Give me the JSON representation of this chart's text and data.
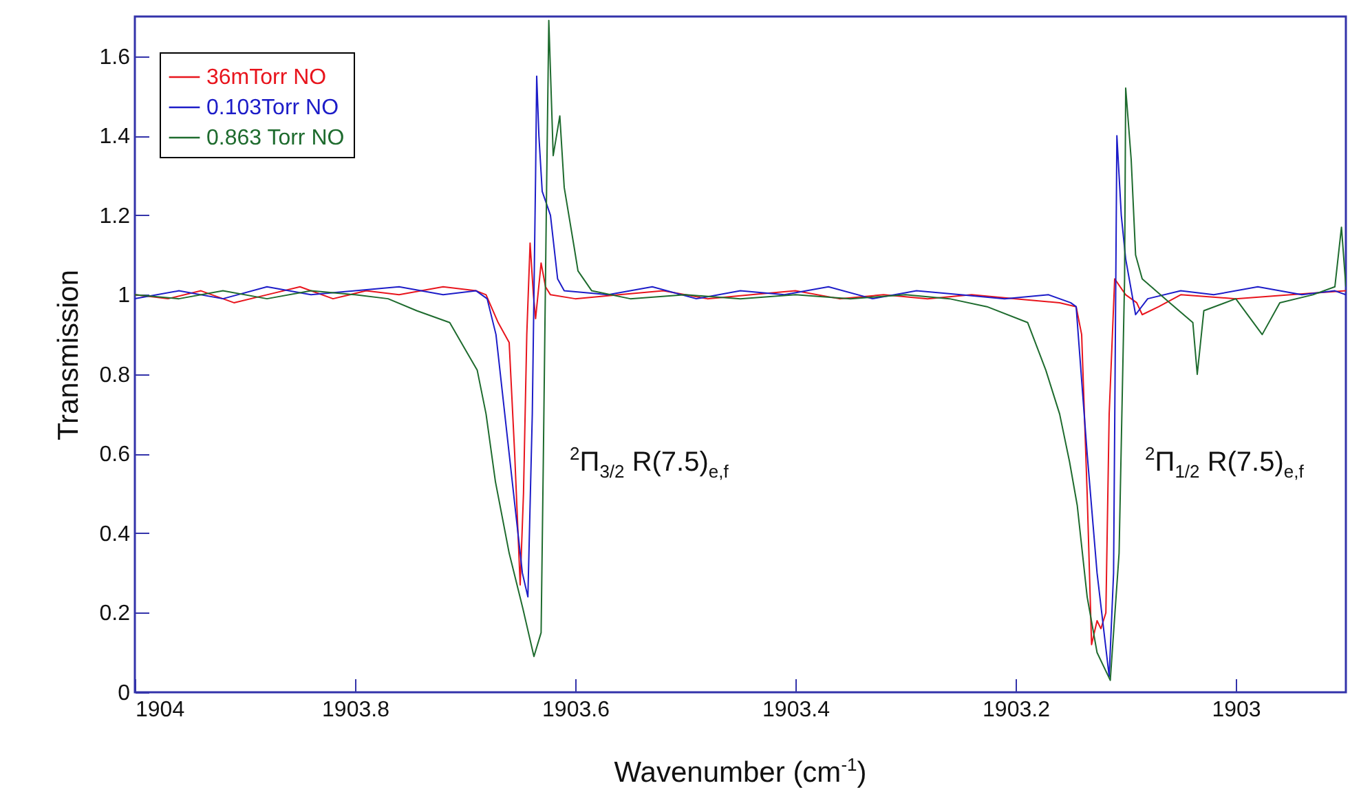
{
  "chart_data": {
    "type": "line",
    "xlabel": "Wavenumber (cm$^{-1}$)",
    "ylabel": "Transmission",
    "xlim": [
      1904,
      1902.9
    ],
    "ylim": [
      0,
      1.7
    ],
    "xticks": [
      1904,
      1903.8,
      1903.6,
      1903.4,
      1903.2,
      1903
    ],
    "yticks": [
      0,
      0.2,
      0.4,
      0.6,
      0.8,
      1,
      1.2,
      1.4,
      1.6
    ],
    "legend": "top left",
    "grid": false,
    "marker": "none",
    "line_style": "solid",
    "annotations": [
      "$^{2}$Π$_{3/2}$ R(7.5)$_{e,f}$",
      "$^{2}$Π$_{1/2}$ R(7.5)$_{e,f}$"
    ],
    "series": [
      {
        "name": "36mTorr NO",
        "color": "#e8141c",
        "x": [
          1904,
          1903.97,
          1903.94,
          1903.91,
          1903.88,
          1903.85,
          1903.82,
          1903.79,
          1903.76,
          1903.72,
          1903.69,
          1903.681,
          1903.67,
          1903.66,
          1903.655,
          1903.65,
          1903.647,
          1903.644,
          1903.641,
          1903.638,
          1903.636,
          1903.631,
          1903.627,
          1903.6225,
          1903.6,
          1903.56,
          1903.52,
          1903.48,
          1903.44,
          1903.4,
          1903.36,
          1903.32,
          1903.28,
          1903.24,
          1903.2,
          1903.16,
          1903.145,
          1903.14,
          1903.135,
          1903.131,
          1903.126,
          1903.1225,
          1903.118,
          1903.115,
          1903.11,
          1903.1,
          1903.09,
          1903.085,
          1903.07,
          1903.05,
          1903.0,
          1902.95,
          1902.9
        ],
        "values": [
          1.0,
          0.99,
          1.01,
          0.98,
          1.0,
          1.02,
          0.99,
          1.01,
          1.0,
          1.02,
          1.01,
          1.0,
          0.93,
          0.88,
          0.6,
          0.27,
          0.5,
          0.9,
          1.13,
          1.0,
          0.94,
          1.08,
          1.02,
          1.0,
          0.99,
          1.0,
          1.01,
          0.99,
          1.0,
          1.01,
          0.99,
          1.0,
          0.99,
          1.0,
          0.99,
          0.98,
          0.97,
          0.9,
          0.5,
          0.12,
          0.18,
          0.16,
          0.2,
          0.7,
          1.04,
          1.0,
          0.98,
          0.95,
          0.97,
          1.0,
          0.99,
          1.0,
          1.01
        ]
      },
      {
        "name": "0.103Torr NO",
        "color": "#1c1cc8",
        "x": [
          1904,
          1903.96,
          1903.92,
          1903.88,
          1903.84,
          1903.8,
          1903.76,
          1903.72,
          1903.69,
          1903.68,
          1903.672,
          1903.66,
          1903.648,
          1903.643,
          1903.639,
          1903.636,
          1903.635,
          1903.633,
          1903.63,
          1903.6225,
          1903.616,
          1903.61,
          1903.57,
          1903.53,
          1903.49,
          1903.45,
          1903.41,
          1903.37,
          1903.33,
          1903.29,
          1903.25,
          1903.21,
          1903.17,
          1903.15,
          1903.145,
          1903.135,
          1903.126,
          1903.115,
          1903.111,
          1903.108,
          1903.104,
          1903.1,
          1903.091,
          1903.08,
          1903.05,
          1903.02,
          1902.98,
          1902.94,
          1902.91,
          1902.9
        ],
        "values": [
          0.99,
          1.01,
          0.99,
          1.02,
          1.0,
          1.01,
          1.02,
          1.0,
          1.01,
          0.99,
          0.9,
          0.6,
          0.3,
          0.24,
          0.7,
          1.3,
          1.55,
          1.4,
          1.26,
          1.2,
          1.04,
          1.01,
          1.0,
          1.02,
          0.99,
          1.01,
          1.0,
          1.02,
          0.99,
          1.01,
          1.0,
          0.99,
          1.0,
          0.98,
          0.97,
          0.6,
          0.3,
          0.04,
          0.3,
          1.4,
          1.2,
          1.09,
          0.95,
          0.99,
          1.01,
          1.0,
          1.02,
          1.0,
          1.01,
          1.0
        ]
      },
      {
        "name": "0.863 Torr NO",
        "color": "#1e6b2e",
        "x": [
          1904,
          1903.96,
          1903.92,
          1903.88,
          1903.84,
          1903.8,
          1903.77,
          1903.744,
          1903.714,
          1903.689,
          1903.681,
          1903.6725,
          1903.66,
          1903.6475,
          1903.6375,
          1903.631,
          1903.629,
          1903.626,
          1903.624,
          1903.62,
          1903.614,
          1903.61,
          1903.601,
          1903.5975,
          1903.585,
          1903.55,
          1903.5,
          1903.45,
          1903.4,
          1903.35,
          1903.3,
          1903.26,
          1903.226,
          1903.189,
          1903.1725,
          1903.16,
          1903.151,
          1903.144,
          1903.135,
          1903.126,
          1903.114,
          1903.106,
          1903.101,
          1903.1,
          1903.095,
          1903.091,
          1903.085,
          1903.06,
          1903.039,
          1903.035,
          1903.029,
          1903.0,
          1902.976,
          1902.96,
          1902.93,
          1902.91,
          1902.904,
          1902.9
        ],
        "values": [
          1.0,
          0.99,
          1.01,
          0.99,
          1.01,
          1.0,
          0.99,
          0.96,
          0.93,
          0.81,
          0.7,
          0.53,
          0.35,
          0.21,
          0.09,
          0.15,
          0.58,
          1.27,
          1.69,
          1.35,
          1.45,
          1.27,
          1.12,
          1.06,
          1.01,
          0.99,
          1.0,
          0.99,
          1.0,
          0.99,
          1.0,
          0.99,
          0.97,
          0.93,
          0.81,
          0.7,
          0.58,
          0.47,
          0.24,
          0.1,
          0.03,
          0.35,
          1.04,
          1.52,
          1.34,
          1.1,
          1.04,
          0.98,
          0.93,
          0.8,
          0.96,
          0.99,
          0.9,
          0.98,
          1.0,
          1.02,
          1.17,
          1.02
        ]
      }
    ]
  }
}
